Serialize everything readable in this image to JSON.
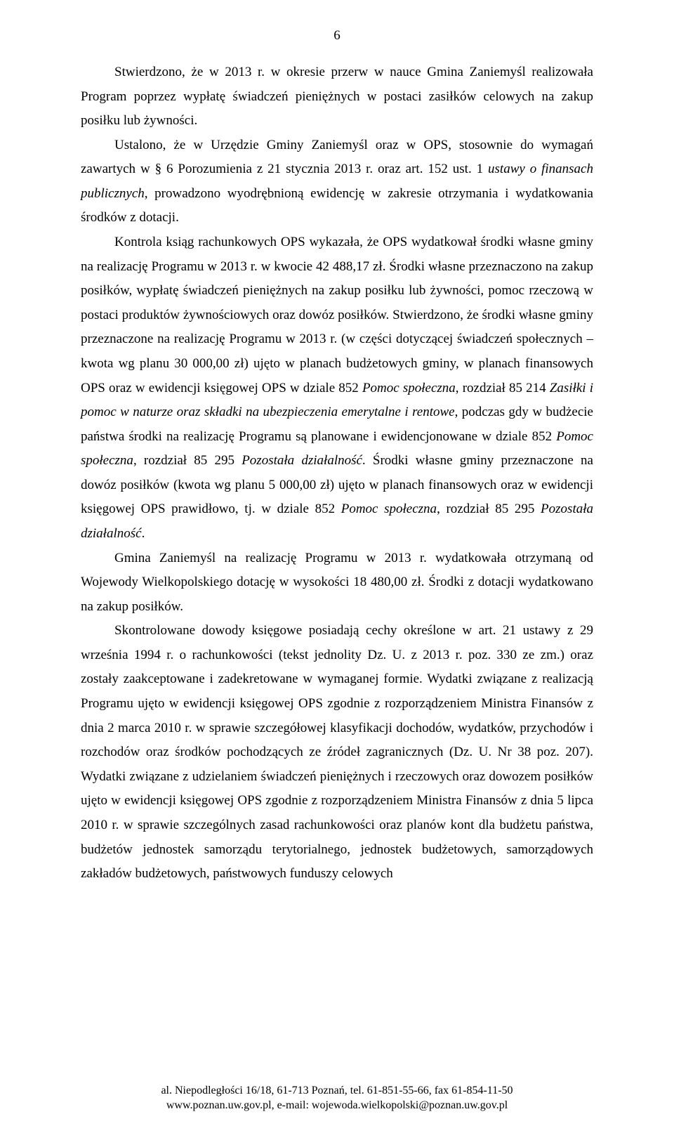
{
  "page_number": "6",
  "paragraphs": {
    "p1a": "Stwierdzono, że w 2013 r. w okresie przerw w nauce Gmina Zaniemyśl realizowała Program poprzez wypłatę świadczeń pieniężnych w postaci zasiłków celowych na zakup posiłku lub żywności.",
    "p2a": "Ustalono, że w Urzędzie Gminy Zaniemyśl oraz w OPS, stosownie do wymagań zawartych w § 6 Porozumienia z 21 stycznia 2013 r. oraz art. 152 ust. 1 ",
    "p2i": "ustawy o finansach publicznych",
    "p2b": ", prowadzono wyodrębnioną ewidencję w zakresie otrzymania i wydatkowania środków z dotacji.",
    "p3a": "Kontrola ksiąg rachunkowych OPS wykazała, że OPS wydatkował środki własne gminy na realizację Programu w 2013 r. w kwocie 42 488,17 zł. Środki własne przeznaczono na zakup posiłków, wypłatę świadczeń pieniężnych na zakup posiłku lub żywności, pomoc rzeczową w postaci produktów żywnościowych oraz dowóz posiłków. Stwierdzono, że środki własne gminy przeznaczone na realizację Programu w 2013 r. (w części dotyczącej świadczeń społecznych – kwota wg planu 30 000,00 zł) ujęto w planach budżetowych gminy, w planach finansowych OPS oraz w ewidencji księgowej OPS w dziale 852 ",
    "p3i1": "Pomoc społeczna",
    "p3b": ", rozdział 85 214 ",
    "p3i2": "Zasiłki i pomoc w naturze oraz składki na ubezpieczenia emerytalne i rentowe",
    "p3c": ", podczas gdy w budżecie państwa środki na realizację Programu są planowane i ewidencjonowane w dziale 852 ",
    "p3i3": "Pomoc społeczna",
    "p3d": ", rozdział 85 295 ",
    "p3i4": "Pozostała działalność",
    "p3e": ". Środki własne gminy przeznaczone na dowóz posiłków (kwota wg planu 5 000,00 zł) ujęto w planach finansowych oraz w ewidencji księgowej OPS prawidłowo, tj. w dziale 852 ",
    "p3i5": "Pomoc społeczna",
    "p3f": ", rozdział 85 295 ",
    "p3i6": "Pozostała działalność",
    "p3g": ".",
    "p4a": "Gmina Zaniemyśl na realizację Programu w 2013 r. wydatkowała otrzymaną od Wojewody Wielkopolskiego dotację w wysokości 18 480,00 zł. Środki z dotacji wydatkowano na zakup posiłków.",
    "p5a": "Skontrolowane dowody księgowe posiadają cechy określone w art. 21 ustawy z 29 września 1994 r. o rachunkowości (tekst jednolity Dz. U. z 2013 r. poz. 330 ze zm.) oraz zostały zaakceptowane i zadekretowane w wymaganej formie. Wydatki związane z realizacją Programu ujęto w ewidencji księgowej OPS zgodnie z rozporządzeniem Ministra Finansów z dnia 2 marca 2010 r. w sprawie szczegółowej klasyfikacji dochodów, wydatków, przychodów i rozchodów oraz środków pochodzących ze źródeł zagranicznych (Dz. U. Nr 38 poz. 207). Wydatki związane z udzielaniem świadczeń pieniężnych i rzeczowych oraz dowozem posiłków ujęto w ewidencji księgowej OPS zgodnie z rozporządzeniem Ministra Finansów z dnia 5 lipca 2010 r. w sprawie szczególnych zasad rachunkowości oraz planów kont dla budżetu państwa, budżetów jednostek samorządu terytorialnego, jednostek budżetowych, samorządowych zakładów budżetowych, państwowych funduszy celowych"
  },
  "footer": {
    "line1": "al. Niepodległości 16/18, 61-713 Poznań, tel. 61-851-55-66, fax 61-854-11-50",
    "line2": "www.poznan.uw.gov.pl, e-mail: wojewoda.wielkopolski@poznan.uw.gov.pl"
  }
}
